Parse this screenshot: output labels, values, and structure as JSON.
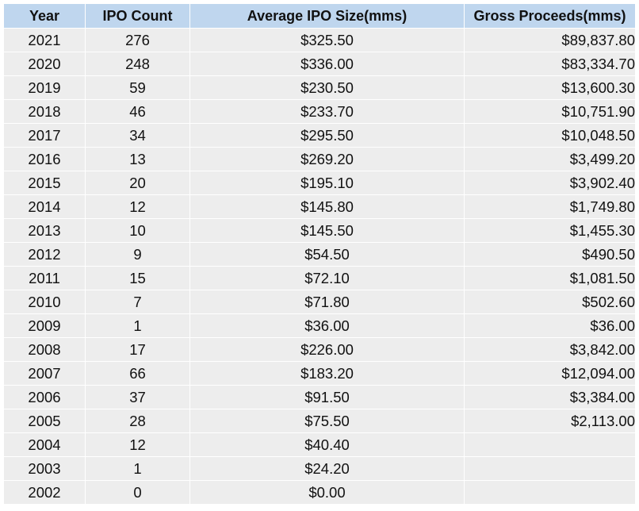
{
  "table": {
    "headers": {
      "year": "Year",
      "count": "IPO Count",
      "avg": "Average IPO Size(mms)",
      "gross": "Gross Proceeds(mms)"
    },
    "rows": [
      {
        "year": "2021",
        "count": "276",
        "avg": "$325.50",
        "gross": "$89,837.80"
      },
      {
        "year": "2020",
        "count": "248",
        "avg": "$336.00",
        "gross": "$83,334.70"
      },
      {
        "year": "2019",
        "count": "59",
        "avg": "$230.50",
        "gross": "$13,600.30"
      },
      {
        "year": "2018",
        "count": "46",
        "avg": "$233.70",
        "gross": "$10,751.90"
      },
      {
        "year": "2017",
        "count": "34",
        "avg": "$295.50",
        "gross": "$10,048.50"
      },
      {
        "year": "2016",
        "count": "13",
        "avg": "$269.20",
        "gross": "$3,499.20"
      },
      {
        "year": "2015",
        "count": "20",
        "avg": "$195.10",
        "gross": "$3,902.40"
      },
      {
        "year": "2014",
        "count": "12",
        "avg": "$145.80",
        "gross": "$1,749.80"
      },
      {
        "year": "2013",
        "count": "10",
        "avg": "$145.50",
        "gross": "$1,455.30"
      },
      {
        "year": "2012",
        "count": "9",
        "avg": "$54.50",
        "gross": "$490.50"
      },
      {
        "year": "2011",
        "count": "15",
        "avg": "$72.10",
        "gross": "$1,081.50"
      },
      {
        "year": "2010",
        "count": "7",
        "avg": "$71.80",
        "gross": "$502.60"
      },
      {
        "year": "2009",
        "count": "1",
        "avg": "$36.00",
        "gross": "$36.00"
      },
      {
        "year": "2008",
        "count": "17",
        "avg": "$226.00",
        "gross": "$3,842.00"
      },
      {
        "year": "2007",
        "count": "66",
        "avg": "$183.20",
        "gross": "$12,094.00"
      },
      {
        "year": "2006",
        "count": "37",
        "avg": "$91.50",
        "gross": "$3,384.00"
      },
      {
        "year": "2005",
        "count": "28",
        "avg": "$75.50",
        "gross": "$2,113.00"
      },
      {
        "year": "2004",
        "count": "12",
        "avg": "$40.40",
        "gross": ""
      },
      {
        "year": "2003",
        "count": "1",
        "avg": "$24.20",
        "gross": ""
      },
      {
        "year": "2002",
        "count": "0",
        "avg": "$0.00",
        "gross": ""
      }
    ]
  },
  "colors": {
    "header_background": "#bfd6ee",
    "cell_background": "#ededed",
    "grid_lines": "#ffffff"
  }
}
